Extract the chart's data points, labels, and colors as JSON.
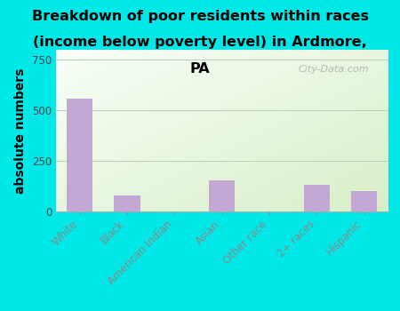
{
  "categories": [
    "White",
    "Black",
    "American Indian",
    "Asian",
    "Other race",
    "2+ races",
    "Hispanic"
  ],
  "values": [
    560,
    80,
    0,
    155,
    0,
    130,
    100
  ],
  "bar_color": "#c4a8d4",
  "background_color": "#00e8e8",
  "plot_bg_color_top_right": "#d8eec8",
  "plot_bg_color_bottom_left": "#f8fff8",
  "title_line1": "Breakdown of poor residents within races",
  "title_line2": "(income below poverty level) in Ardmore,",
  "title_line3": "PA",
  "ylabel": "absolute numbers",
  "ylim": [
    0,
    800
  ],
  "yticks": [
    0,
    250,
    500,
    750
  ],
  "grid_color": "#bbccbb",
  "watermark": "City-Data.com",
  "title_fontsize": 11.5,
  "ylabel_fontsize": 10,
  "tick_fontsize": 8.5
}
